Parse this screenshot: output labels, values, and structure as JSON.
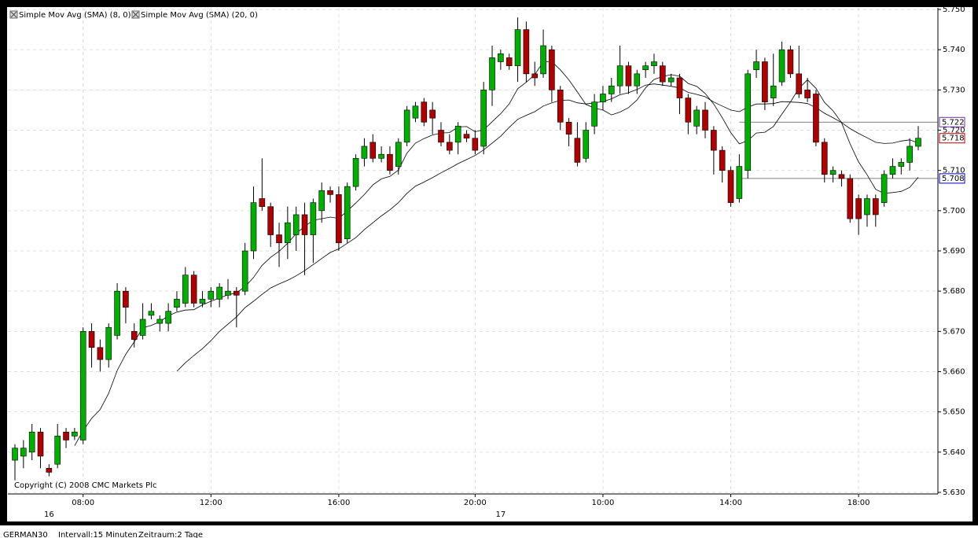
{
  "chart_data": {
    "type": "candlestick",
    "legend": [
      "Simple Mov Avg (SMA) (8, 0)",
      "Simple Mov Avg (SMA) (20, 0)"
    ],
    "copyright": "Copyright (C) 2008 CMC Markets Plc",
    "footer": {
      "symbol": "GERMAN30",
      "interval": "Intervall:15 Minuten",
      "period": "Zeitraum:2 Tage"
    },
    "up_color": "#00b000",
    "down_color": "#b00000",
    "grid": true,
    "ylim": [
      5.63,
      5.75
    ],
    "yticks": [
      {
        "value": 5.63,
        "label": "5.630"
      },
      {
        "value": 5.64,
        "label": "5.640"
      },
      {
        "value": 5.65,
        "label": "5.650"
      },
      {
        "value": 5.66,
        "label": "5.660"
      },
      {
        "value": 5.67,
        "label": "5.670"
      },
      {
        "value": 5.68,
        "label": "5.680"
      },
      {
        "value": 5.69,
        "label": "5.690"
      },
      {
        "value": 5.7,
        "label": "5.700"
      },
      {
        "value": 5.71,
        "label": "5.710"
      },
      {
        "value": 5.72,
        "label": "5.720"
      },
      {
        "value": 5.73,
        "label": "5.730"
      },
      {
        "value": 5.74,
        "label": "5.740"
      },
      {
        "value": 5.75,
        "label": "5.750"
      }
    ],
    "categories": [
      null,
      null,
      null,
      null,
      null,
      null,
      null,
      null,
      "08:00",
      null,
      null,
      null,
      null,
      null,
      null,
      null,
      null,
      null,
      null,
      null,
      null,
      null,
      null,
      "12:00",
      null,
      null,
      null,
      null,
      null,
      null,
      null,
      null,
      null,
      null,
      null,
      null,
      null,
      null,
      "16:00",
      null,
      null,
      null,
      null,
      null,
      null,
      null,
      null,
      null,
      null,
      null,
      null,
      null,
      null,
      null,
      "20:00",
      null,
      null,
      null,
      null,
      null,
      null,
      null,
      null,
      null,
      null,
      null,
      null,
      null,
      null,
      "10:00",
      null,
      null,
      null,
      null,
      null,
      null,
      null,
      null,
      null,
      null,
      null,
      null,
      null,
      null,
      "14:00",
      null,
      null,
      null,
      null,
      null,
      null,
      null,
      null,
      null,
      null,
      null,
      null,
      null,
      null,
      "18:00",
      null,
      null,
      null,
      null,
      null,
      null,
      null
    ],
    "day_labels": [
      {
        "index": 4,
        "label": "16"
      },
      {
        "index": 57,
        "label": "17"
      }
    ],
    "levels": [
      {
        "value": 5.722,
        "color": "#7030a0",
        "start": 85,
        "line": true
      },
      {
        "value": 5.718,
        "color": "#c00000",
        "start": 106,
        "line": false
      },
      {
        "value": 5.708,
        "color": "#0000c0",
        "start": 85,
        "line": true
      }
    ],
    "ohlc": [
      [
        5.638,
        5.642,
        5.633,
        5.641
      ],
      [
        5.639,
        5.643,
        5.636,
        5.641
      ],
      [
        5.64,
        5.647,
        5.638,
        5.645
      ],
      [
        5.645,
        5.646,
        5.636,
        5.639
      ],
      [
        5.636,
        5.637,
        5.634,
        5.635
      ],
      [
        5.637,
        5.647,
        5.636,
        5.644
      ],
      [
        5.645,
        5.646,
        5.641,
        5.643
      ],
      [
        5.644,
        5.646,
        5.643,
        5.645
      ],
      [
        5.643,
        5.671,
        5.642,
        5.67
      ],
      [
        5.67,
        5.672,
        5.661,
        5.666
      ],
      [
        5.666,
        5.668,
        5.66,
        5.663
      ],
      [
        5.663,
        5.672,
        5.661,
        5.671
      ],
      [
        5.669,
        5.682,
        5.668,
        5.68
      ],
      [
        5.68,
        5.681,
        5.672,
        5.676
      ],
      [
        5.67,
        5.672,
        5.666,
        5.668
      ],
      [
        5.669,
        5.677,
        5.668,
        5.673
      ],
      [
        5.674,
        5.677,
        5.673,
        5.675
      ],
      [
        5.672,
        5.674,
        5.67,
        5.673
      ],
      [
        5.672,
        5.677,
        5.67,
        5.675
      ],
      [
        5.676,
        5.68,
        5.675,
        5.678
      ],
      [
        5.677,
        5.686,
        5.676,
        5.684
      ],
      [
        5.684,
        5.685,
        5.676,
        5.677
      ],
      [
        5.677,
        5.68,
        5.676,
        5.678
      ],
      [
        5.678,
        5.681,
        5.676,
        5.68
      ],
      [
        5.678,
        5.682,
        5.676,
        5.681
      ],
      [
        5.679,
        5.683,
        5.678,
        5.68
      ],
      [
        5.68,
        5.681,
        5.671,
        5.679
      ],
      [
        5.68,
        5.692,
        5.679,
        5.69
      ],
      [
        5.69,
        5.706,
        5.688,
        5.702
      ],
      [
        5.703,
        5.713,
        5.7,
        5.701
      ],
      [
        5.701,
        5.702,
        5.691,
        5.694
      ],
      [
        5.694,
        5.697,
        5.686,
        5.692
      ],
      [
        5.692,
        5.701,
        5.688,
        5.697
      ],
      [
        5.694,
        5.701,
        5.69,
        5.699
      ],
      [
        5.699,
        5.702,
        5.684,
        5.694
      ],
      [
        5.694,
        5.703,
        5.687,
        5.702
      ],
      [
        5.7,
        5.707,
        5.697,
        5.705
      ],
      [
        5.705,
        5.706,
        5.702,
        5.704
      ],
      [
        5.704,
        5.706,
        5.69,
        5.692
      ],
      [
        5.693,
        5.707,
        5.692,
        5.706
      ],
      [
        5.706,
        5.714,
        5.705,
        5.713
      ],
      [
        5.713,
        5.718,
        5.711,
        5.716
      ],
      [
        5.717,
        5.719,
        5.712,
        5.713
      ],
      [
        5.713,
        5.716,
        5.712,
        5.714
      ],
      [
        5.714,
        5.716,
        5.709,
        5.71
      ],
      [
        5.711,
        5.718,
        5.709,
        5.717
      ],
      [
        5.717,
        5.726,
        5.716,
        5.725
      ],
      [
        5.723,
        5.727,
        5.722,
        5.726
      ],
      [
        5.727,
        5.728,
        5.721,
        5.722
      ],
      [
        5.725,
        5.727,
        5.719,
        5.723
      ],
      [
        5.72,
        5.722,
        5.716,
        5.717
      ],
      [
        5.717,
        5.719,
        5.714,
        5.715
      ],
      [
        5.717,
        5.722,
        5.714,
        5.721
      ],
      [
        5.719,
        5.72,
        5.717,
        5.718
      ],
      [
        5.718,
        5.72,
        5.714,
        5.715
      ],
      [
        5.716,
        5.732,
        5.714,
        5.73
      ],
      [
        5.73,
        5.741,
        5.726,
        5.738
      ],
      [
        5.737,
        5.74,
        5.735,
        5.739
      ],
      [
        5.738,
        5.739,
        5.735,
        5.736
      ],
      [
        5.736,
        5.748,
        5.732,
        5.745
      ],
      [
        5.745,
        5.747,
        5.732,
        5.734
      ],
      [
        5.734,
        5.737,
        5.731,
        5.733
      ],
      [
        5.734,
        5.745,
        5.733,
        5.741
      ],
      [
        5.74,
        5.741,
        5.727,
        5.73
      ],
      [
        5.73,
        5.731,
        5.72,
        5.722
      ],
      [
        5.722,
        5.723,
        5.716,
        5.719
      ],
      [
        5.718,
        5.722,
        5.711,
        5.712
      ],
      [
        5.713,
        5.722,
        5.712,
        5.72
      ],
      [
        5.721,
        5.729,
        5.719,
        5.727
      ],
      [
        5.727,
        5.731,
        5.725,
        5.729
      ],
      [
        5.729,
        5.733,
        5.727,
        5.731
      ],
      [
        5.731,
        5.741,
        5.729,
        5.736
      ],
      [
        5.736,
        5.737,
        5.729,
        5.731
      ],
      [
        5.731,
        5.735,
        5.729,
        5.734
      ],
      [
        5.735,
        5.737,
        5.733,
        5.736
      ],
      [
        5.736,
        5.739,
        5.734,
        5.737
      ],
      [
        5.736,
        5.737,
        5.731,
        5.732
      ],
      [
        5.732,
        5.734,
        5.731,
        5.733
      ],
      [
        5.733,
        5.734,
        5.724,
        5.728
      ],
      [
        5.728,
        5.729,
        5.719,
        5.722
      ],
      [
        5.721,
        5.726,
        5.719,
        5.725
      ],
      [
        5.725,
        5.727,
        5.718,
        5.72
      ],
      [
        5.72,
        5.721,
        5.709,
        5.715
      ],
      [
        5.715,
        5.716,
        5.707,
        5.71
      ],
      [
        5.71,
        5.711,
        5.701,
        5.702
      ],
      [
        5.703,
        5.714,
        5.702,
        5.711
      ],
      [
        5.71,
        5.735,
        5.708,
        5.734
      ],
      [
        5.735,
        5.74,
        5.733,
        5.737
      ],
      [
        5.737,
        5.738,
        5.725,
        5.727
      ],
      [
        5.728,
        5.739,
        5.726,
        5.731
      ],
      [
        5.732,
        5.742,
        5.731,
        5.74
      ],
      [
        5.74,
        5.741,
        5.733,
        5.734
      ],
      [
        5.734,
        5.741,
        5.728,
        5.729
      ],
      [
        5.73,
        5.733,
        5.727,
        5.728
      ],
      [
        5.729,
        5.73,
        5.716,
        5.717
      ],
      [
        5.717,
        5.718,
        5.707,
        5.709
      ],
      [
        5.709,
        5.711,
        5.707,
        5.71
      ],
      [
        5.709,
        5.71,
        5.706,
        5.708
      ],
      [
        5.708,
        5.709,
        5.697,
        5.698
      ],
      [
        5.703,
        5.704,
        5.694,
        5.698
      ],
      [
        5.699,
        5.704,
        5.696,
        5.703
      ],
      [
        5.703,
        5.704,
        5.696,
        5.699
      ],
      [
        5.702,
        5.71,
        5.701,
        5.709
      ],
      [
        5.709,
        5.713,
        5.708,
        5.711
      ],
      [
        5.711,
        5.713,
        5.709,
        5.712
      ],
      [
        5.712,
        5.718,
        5.71,
        5.716
      ],
      [
        5.716,
        5.721,
        5.715,
        5.718
      ]
    ],
    "series": [
      {
        "name": "SMA 8",
        "color": "#000000",
        "values": [
          null,
          null,
          null,
          null,
          null,
          null,
          null,
          5.6416,
          5.6453,
          5.6484,
          5.6506,
          5.6546,
          5.6603,
          5.6643,
          5.6674,
          5.6709,
          5.6715,
          5.6724,
          5.6739,
          5.6748,
          5.6753,
          5.6754,
          5.6766,
          5.6775,
          5.6783,
          5.6791,
          5.6796,
          5.6811,
          5.6834,
          5.6864,
          5.6884,
          5.6899,
          5.6919,
          5.6943,
          5.6961,
          5.6976,
          5.698,
          5.6984,
          5.6981,
          5.6999,
          5.7019,
          5.704,
          5.7064,
          5.7079,
          5.7085,
          5.7101,
          5.7143,
          5.7168,
          5.7179,
          5.7188,
          5.7193,
          5.7194,
          5.7208,
          5.7209,
          5.7196,
          5.7201,
          5.7221,
          5.7241,
          5.7265,
          5.7303,
          5.7319,
          5.7338,
          5.737,
          5.737,
          5.735,
          5.7325,
          5.7295,
          5.7264,
          5.7255,
          5.725,
          5.7238,
          5.7245,
          5.7256,
          5.7275,
          5.7305,
          5.7326,
          5.7333,
          5.7338,
          5.7334,
          5.7316,
          5.7309,
          5.7291,
          5.7265,
          5.7231,
          5.7194,
          5.7166,
          5.7174,
          5.7193,
          5.7195,
          5.7209,
          5.724,
          5.727,
          5.7304,
          5.7325,
          5.7304,
          5.7269,
          5.7248,
          5.7219,
          5.7166,
          5.7121,
          5.7089,
          5.7053,
          5.7043,
          5.7045,
          5.7048,
          5.7058,
          5.7083
        ]
      },
      {
        "name": "SMA 20",
        "color": "#000000",
        "values": [
          null,
          null,
          null,
          null,
          null,
          null,
          null,
          null,
          null,
          null,
          null,
          null,
          null,
          null,
          null,
          null,
          null,
          null,
          null,
          5.6601,
          5.6622,
          5.664,
          5.6657,
          5.6677,
          5.67,
          5.6718,
          5.6736,
          5.6759,
          5.6775,
          5.6792,
          5.6808,
          5.6818,
          5.6827,
          5.6838,
          5.6851,
          5.6866,
          5.6881,
          5.6896,
          5.6905,
          5.6919,
          5.6933,
          5.6953,
          5.697,
          5.6987,
          5.7002,
          5.702,
          5.7043,
          5.7061,
          5.7071,
          5.7082,
          5.7094,
          5.7105,
          5.7117,
          5.7127,
          5.7137,
          5.7151,
          5.7168,
          5.7185,
          5.7207,
          5.7227,
          5.7237,
          5.7246,
          5.726,
          5.7268,
          5.7274,
          5.7275,
          5.7268,
          5.7265,
          5.7268,
          5.7271,
          5.7278,
          5.7288,
          5.7293,
          5.7301,
          5.7312,
          5.7315,
          5.7312,
          5.7309,
          5.7305,
          5.7294,
          5.7289,
          5.7283,
          5.727,
          5.726,
          5.725,
          5.7246,
          5.7257,
          5.7265,
          5.7265,
          5.7266,
          5.7271,
          5.727,
          5.7269,
          5.7266,
          5.7256,
          5.7242,
          5.7231,
          5.7219,
          5.7204,
          5.7192,
          5.7181,
          5.717,
          5.7167,
          5.7168,
          5.7173,
          5.7176,
          5.7168
        ]
      }
    ]
  }
}
